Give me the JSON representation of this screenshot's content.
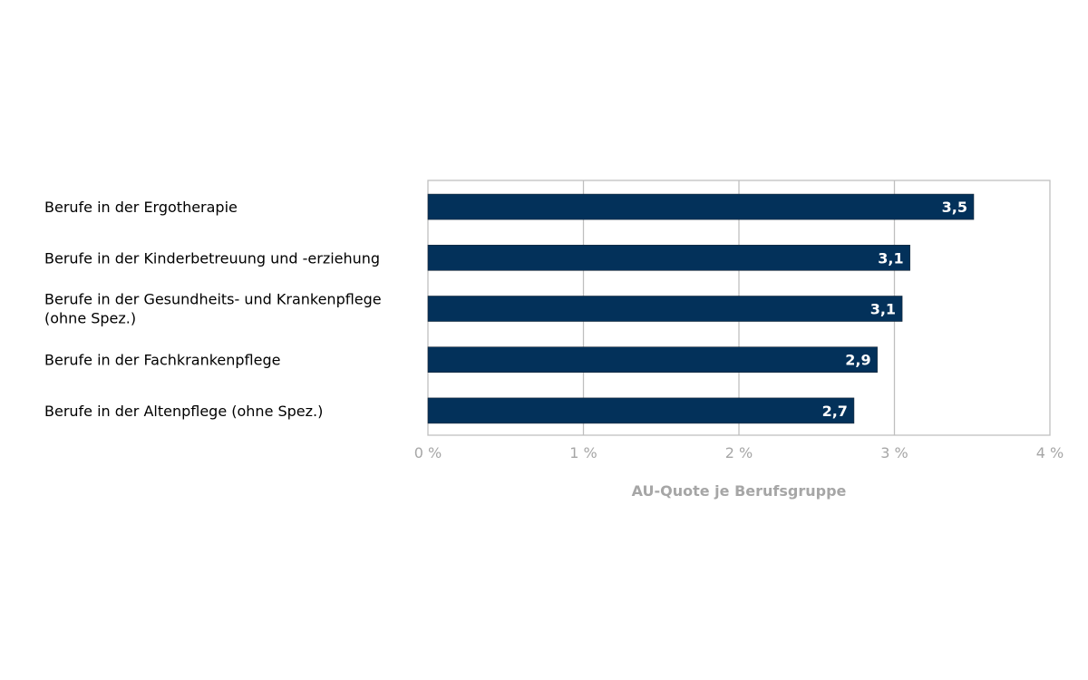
{
  "chart_data": {
    "type": "bar",
    "orientation": "horizontal",
    "title": "",
    "xlabel": "AU-Quote je Berufsgruppe",
    "ylabel": "",
    "categories": [
      [
        "Berufe in der Ergotherapie"
      ],
      [
        "Berufe in der Kinderbetreuung und -erziehung"
      ],
      [
        "Berufe in der Gesundheits- und Krankenpflege",
        "(ohne Spez.)"
      ],
      [
        "Berufe in der Fachkrankenpflege"
      ],
      [
        "Berufe in der Altenpflege (ohne Spez.)"
      ]
    ],
    "values": [
      3.51,
      3.1,
      3.05,
      2.89,
      2.74
    ],
    "data_labels": [
      "3,5",
      "3,1",
      "3,1",
      "2,9",
      "2,7"
    ],
    "xlim": [
      0,
      4
    ],
    "x_ticks": [
      0,
      1,
      2,
      3,
      4
    ],
    "x_tick_labels": [
      "0 %",
      "1 %",
      "2 %",
      "3 %",
      "4 %"
    ],
    "grid": true,
    "bar_color": "#03315a",
    "grid_color": "#bfbfbf"
  }
}
